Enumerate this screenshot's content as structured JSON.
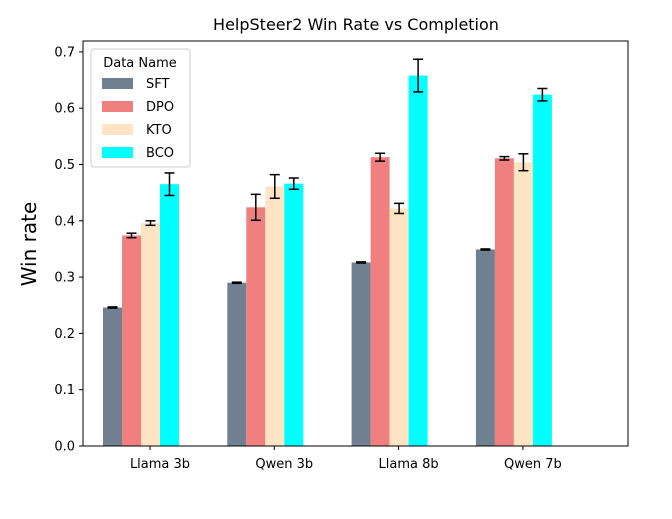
{
  "chart_data": {
    "type": "bar",
    "title": "HelpSteer2 Win Rate vs Completion",
    "xlabel": "",
    "ylabel": "Win rate",
    "ylim": [
      0,
      0.72
    ],
    "yticks": [
      "0.0",
      "0.1",
      "0.2",
      "0.3",
      "0.4",
      "0.5",
      "0.6",
      "0.7"
    ],
    "categories": [
      "Llama 3b",
      "Qwen 3b",
      "Llama 8b",
      "Qwen 7b"
    ],
    "legend": {
      "title": "Data Name",
      "placement": "upper-left"
    },
    "grid": false,
    "series": [
      {
        "name": "SFT",
        "color": "#708090",
        "values": [
          0.246,
          0.29,
          0.326,
          0.349
        ],
        "errors": [
          0.001,
          0.001,
          0.001,
          0.001
        ]
      },
      {
        "name": "DPO",
        "color": "#f08080",
        "values": [
          0.374,
          0.424,
          0.513,
          0.511
        ],
        "errors": [
          0.004,
          0.023,
          0.007,
          0.003
        ]
      },
      {
        "name": "KTO",
        "color": "#ffe4c4",
        "values": [
          0.396,
          0.461,
          0.422,
          0.504
        ],
        "errors": [
          0.004,
          0.021,
          0.009,
          0.015
        ]
      },
      {
        "name": "BCO",
        "color": "#00ffff",
        "values": [
          0.465,
          0.466,
          0.658,
          0.624
        ],
        "errors": [
          0.02,
          0.01,
          0.029,
          0.011
        ]
      }
    ]
  }
}
